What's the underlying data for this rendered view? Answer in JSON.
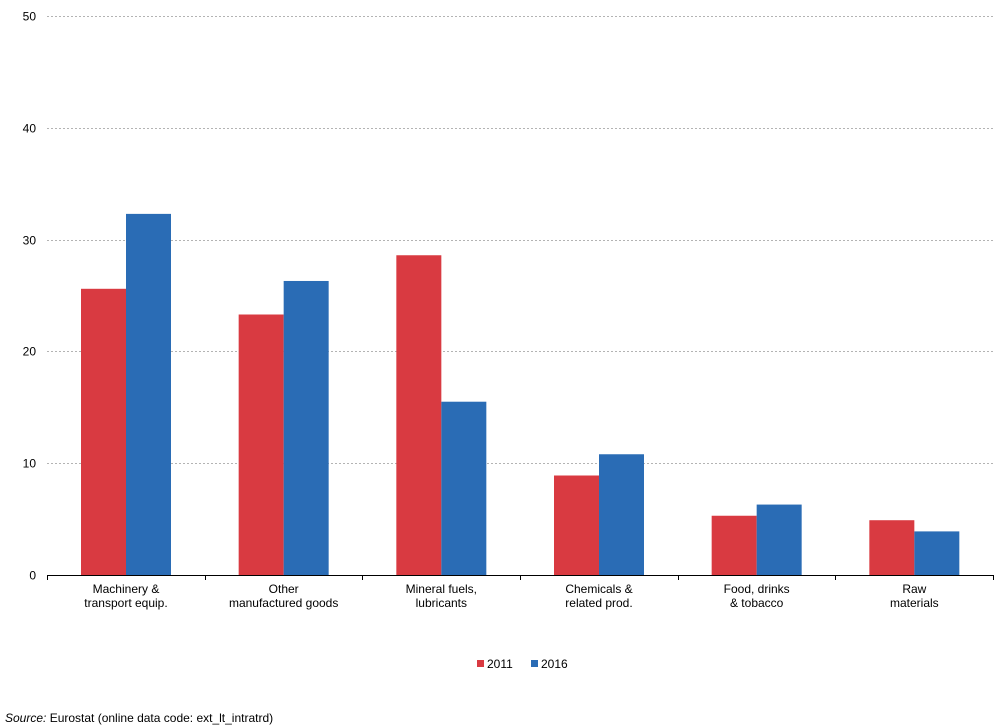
{
  "colors": {
    "series_2011": "#d93a41",
    "series_2016": "#2a6cb5",
    "gridline": "#b3b3b3",
    "axis": "#000000"
  },
  "chart_data": {
    "type": "bar",
    "categories": [
      "Machinery & transport equip.",
      "Other manufactured goods",
      "Mineral fuels, lubricants",
      "Chemicals & related prod.",
      "Food, drinks & tobacco",
      "Raw materials"
    ],
    "category_label_lines": [
      [
        "Machinery &",
        "transport equip."
      ],
      [
        "Other",
        "manufactured goods"
      ],
      [
        "Mineral fuels,",
        "lubricants"
      ],
      [
        "Chemicals &",
        "related prod."
      ],
      [
        "Food, drinks",
        "& tobacco"
      ],
      [
        "Raw",
        "materials"
      ]
    ],
    "series": [
      {
        "name": "2011",
        "values": [
          25.6,
          23.3,
          28.6,
          8.9,
          5.3,
          4.9
        ]
      },
      {
        "name": "2016",
        "values": [
          32.3,
          26.3,
          15.5,
          10.8,
          6.3,
          3.9
        ]
      }
    ],
    "ylim": [
      0,
      50
    ],
    "yticks": [
      0,
      10,
      20,
      30,
      40,
      50
    ],
    "title": "",
    "xlabel": "",
    "ylabel": "",
    "grid": "horizontal dashed",
    "legend_position": "bottom-center"
  },
  "source": {
    "label": "Source:",
    "text": " Eurostat (online data code: ext_lt_intratrd)"
  }
}
